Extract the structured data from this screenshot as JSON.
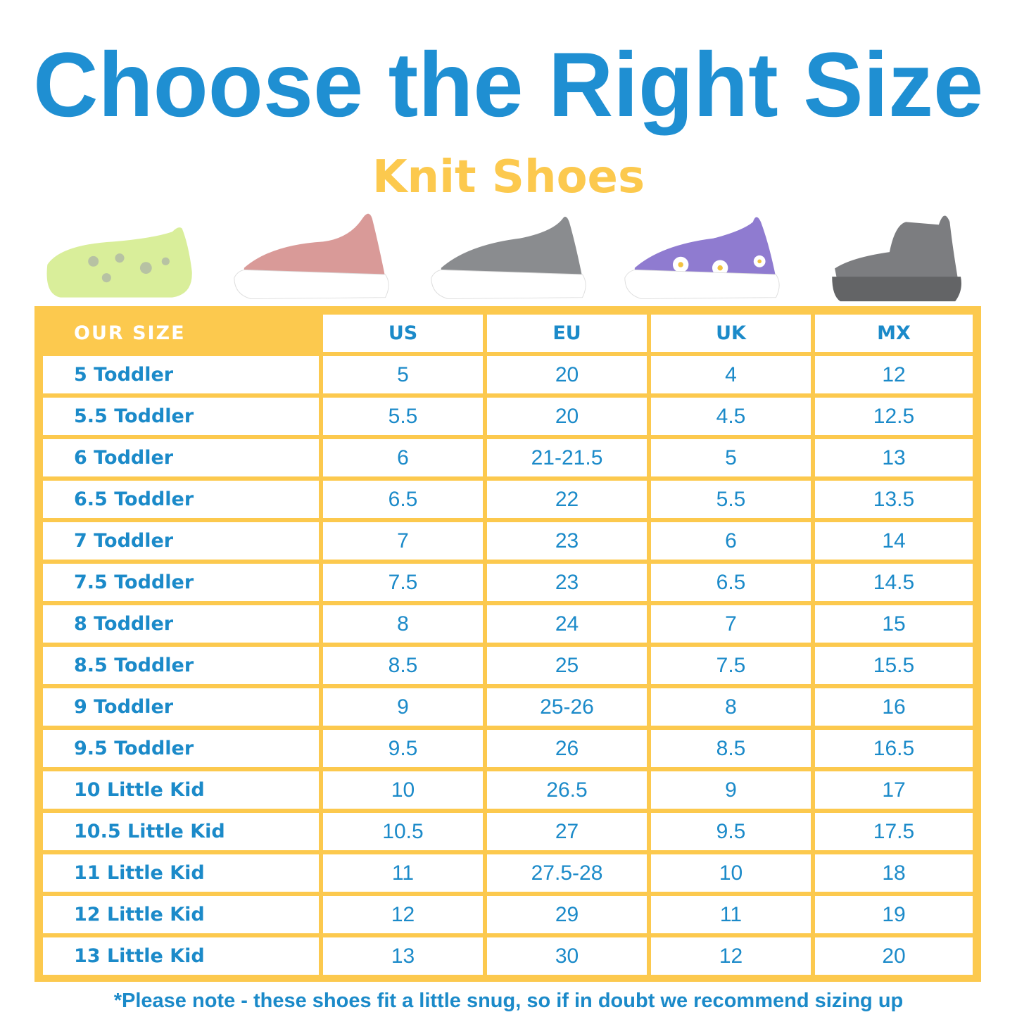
{
  "title": "Choose the Right Size",
  "subtitle": "Knit Shoes",
  "colors": {
    "title_blue": "#1f8fd2",
    "accent_yellow": "#fcc94e",
    "text_blue": "#1b8ac9"
  },
  "shoes": [
    {
      "name": "lime-leopard-knit-shoe",
      "color": "#d9ee9a"
    },
    {
      "name": "pink-knit-shoe",
      "color": "#d99a98"
    },
    {
      "name": "grey-knit-shoe",
      "color": "#8a8c8f"
    },
    {
      "name": "purple-daisy-knit-shoe",
      "color": "#8f7bd0"
    },
    {
      "name": "grey-knit-boot",
      "color": "#7c7d80"
    }
  ],
  "table": {
    "headers": [
      "OUR SIZE",
      "US",
      "EU",
      "UK",
      "MX"
    ],
    "rows": [
      [
        "5 Toddler",
        "5",
        "20",
        "4",
        "12"
      ],
      [
        "5.5 Toddler",
        "5.5",
        "20",
        "4.5",
        "12.5"
      ],
      [
        "6 Toddler",
        "6",
        "21-21.5",
        "5",
        "13"
      ],
      [
        "6.5 Toddler",
        "6.5",
        "22",
        "5.5",
        "13.5"
      ],
      [
        "7 Toddler",
        "7",
        "23",
        "6",
        "14"
      ],
      [
        "7.5 Toddler",
        "7.5",
        "23",
        "6.5",
        "14.5"
      ],
      [
        "8 Toddler",
        "8",
        "24",
        "7",
        "15"
      ],
      [
        "8.5 Toddler",
        "8.5",
        "25",
        "7.5",
        "15.5"
      ],
      [
        "9 Toddler",
        "9",
        "25-26",
        "8",
        "16"
      ],
      [
        "9.5 Toddler",
        "9.5",
        "26",
        "8.5",
        "16.5"
      ],
      [
        "10 Little Kid",
        "10",
        "26.5",
        "9",
        "17"
      ],
      [
        "10.5 Little Kid",
        "10.5",
        "27",
        "9.5",
        "17.5"
      ],
      [
        "11 Little Kid",
        "11",
        "27.5-28",
        "10",
        "18"
      ],
      [
        "12 Little Kid",
        "12",
        "29",
        "11",
        "19"
      ],
      [
        "13 Little Kid",
        "13",
        "30",
        "12",
        "20"
      ]
    ]
  },
  "note": "*Please note - these shoes fit a little snug, so if in doubt we recommend sizing up"
}
